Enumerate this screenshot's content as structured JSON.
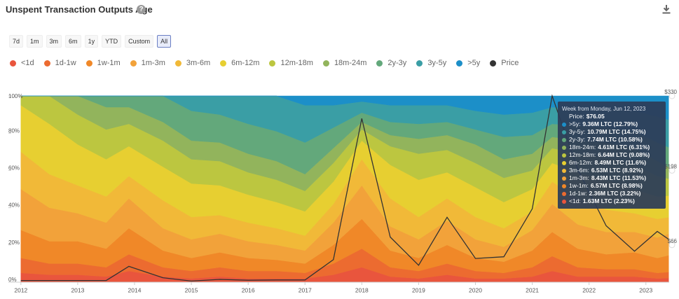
{
  "chart_data": {
    "type": "area",
    "title": "Unspent Transaction Outputs Age",
    "ranges": [
      "7d",
      "1m",
      "3m",
      "6m",
      "1y",
      "YTD",
      "Custom",
      "All"
    ],
    "selected_range": 7,
    "stacked": true,
    "x": [
      2012.0,
      2012.5,
      2013.0,
      2013.5,
      2013.9,
      2014.5,
      2015.0,
      2015.5,
      2016.0,
      2016.5,
      2017.0,
      2017.5,
      2018.0,
      2018.5,
      2019.0,
      2019.5,
      2020.0,
      2020.5,
      2021.0,
      2021.35,
      2021.8,
      2022.3,
      2022.8,
      2023.2,
      2023.4
    ],
    "xlim": [
      2011.78,
      2023.41
    ],
    "xticks": [
      2012,
      2013,
      2014,
      2015,
      2016,
      2017,
      2018,
      2019,
      2020,
      2021,
      2022,
      2023
    ],
    "ylim": [
      0,
      100
    ],
    "yticks": [
      {
        "value": 0,
        "label": "0%"
      },
      {
        "value": 20,
        "label": "20%"
      },
      {
        "value": 40,
        "label": "40%"
      },
      {
        "value": 60,
        "label": "60%"
      },
      {
        "value": 80,
        "label": "80%"
      },
      {
        "value": 100,
        "label": "100%"
      }
    ],
    "y2lim": [
      0,
      330
    ],
    "y2ticks": [
      {
        "value": 66,
        "label": "$66"
      },
      {
        "value": 198,
        "label": "$198"
      },
      {
        "value": 330,
        "label": "$330"
      }
    ],
    "series": [
      {
        "name": "<1d",
        "color": "#e9553d",
        "values": [
          5,
          4,
          4,
          3,
          6,
          3,
          2,
          3,
          2,
          2,
          2,
          4,
          8,
          3,
          2,
          4,
          2,
          2,
          3,
          6,
          3,
          3,
          3,
          2,
          2.23
        ]
      },
      {
        "name": "1d-1w",
        "color": "#ec6b30",
        "values": [
          8,
          6,
          6,
          5,
          9,
          5,
          4,
          5,
          4,
          4,
          3,
          6,
          10,
          5,
          4,
          6,
          4,
          3,
          5,
          8,
          5,
          4,
          4,
          3,
          3.22
        ]
      },
      {
        "name": "1w-1m",
        "color": "#f08828",
        "values": [
          15,
          12,
          12,
          10,
          14,
          9,
          7,
          8,
          7,
          6,
          5,
          10,
          16,
          9,
          7,
          10,
          7,
          6,
          9,
          13,
          10,
          8,
          9,
          8,
          8.98
        ]
      },
      {
        "name": "1m-3m",
        "color": "#f2a23a",
        "values": [
          22,
          18,
          15,
          14,
          16,
          12,
          10,
          10,
          9,
          8,
          7,
          12,
          18,
          13,
          10,
          13,
          10,
          8,
          11,
          15,
          13,
          12,
          11,
          11,
          11.53
        ]
      },
      {
        "name": "3m-6m",
        "color": "#f1b938",
        "values": [
          20,
          18,
          15,
          14,
          12,
          15,
          12,
          10,
          10,
          9,
          8,
          10,
          14,
          15,
          12,
          12,
          12,
          10,
          10,
          12,
          14,
          12,
          10,
          10,
          8.92
        ]
      },
      {
        "name": "6m-12m",
        "color": "#e7cf31",
        "values": [
          25,
          27,
          22,
          20,
          16,
          18,
          18,
          16,
          15,
          14,
          13,
          12,
          10,
          18,
          20,
          14,
          16,
          14,
          12,
          10,
          14,
          16,
          13,
          12,
          11.6
        ]
      },
      {
        "name": "12m-18m",
        "color": "#bcc640",
        "values": [
          5,
          15,
          16,
          16,
          12,
          14,
          13,
          13,
          12,
          12,
          11,
          10,
          6,
          10,
          14,
          12,
          13,
          13,
          10,
          8,
          10,
          12,
          13,
          11,
          9.08
        ]
      },
      {
        "name": "18m-24m",
        "color": "#92b45c",
        "values": [
          0,
          0,
          10,
          12,
          9,
          10,
          10,
          10,
          10,
          10,
          9,
          8,
          4,
          6,
          8,
          8,
          10,
          10,
          9,
          6,
          7,
          8,
          9,
          8,
          6.31
        ]
      },
      {
        "name": "2y-3y",
        "color": "#63a87b",
        "values": [
          0,
          0,
          0,
          6,
          6,
          14,
          16,
          15,
          16,
          16,
          17,
          11,
          5,
          7,
          8,
          7,
          8,
          12,
          10,
          7,
          8,
          8,
          9,
          10,
          10.58
        ]
      },
      {
        "name": "3y-5y",
        "color": "#3a9ea5",
        "values": [
          0,
          0,
          0,
          0,
          0,
          0,
          8,
          10,
          15,
          19,
          20,
          12,
          6,
          9,
          10,
          9,
          10,
          12,
          12,
          9,
          9,
          10,
          11,
          14,
          14.75
        ]
      },
      {
        "name": ">5y",
        "color": "#1c8fc8",
        "values": [
          0,
          0,
          0,
          0,
          0,
          0,
          0,
          0,
          0,
          0,
          5,
          5,
          3,
          5,
          5,
          5,
          8,
          10,
          9,
          6,
          7,
          7,
          8,
          11,
          12.79
        ]
      },
      {
        "name": "Price",
        "color": "#333333",
        "axis": "y2",
        "values": [
          3,
          3,
          3,
          3,
          28,
          8,
          2,
          5,
          3.5,
          4,
          4,
          40,
          290,
          80,
          30,
          115,
          42,
          45,
          130,
          330,
          200,
          100,
          55,
          90,
          76.05
        ]
      }
    ],
    "tooltip": {
      "title": "Week from Monday, Jun 12, 2023",
      "price_label": "Price:",
      "price": "$76.05",
      "items": [
        {
          "label": ">5y:",
          "value": "9.36M LTC (12.79%)"
        },
        {
          "label": "3y-5y:",
          "value": "10.79M LTC (14.75%)"
        },
        {
          "label": "2y-3y:",
          "value": "7.74M LTC (10.58%)"
        },
        {
          "label": "18m-24m:",
          "value": "4.61M LTC (6.31%)"
        },
        {
          "label": "12m-18m:",
          "value": "6.64M LTC (9.08%)"
        },
        {
          "label": "6m-12m:",
          "value": "8.49M LTC (11.6%)"
        },
        {
          "label": "3m-6m:",
          "value": "6.53M LTC (8.92%)"
        },
        {
          "label": "1m-3m:",
          "value": "8.43M LTC (11.53%)"
        },
        {
          "label": "1w-1m:",
          "value": "6.57M LTC (8.98%)"
        },
        {
          "label": "1d-1w:",
          "value": "2.36M LTC (3.22%)"
        },
        {
          "label": "<1d:",
          "value": "1.63M LTC (2.23%)"
        }
      ]
    }
  }
}
